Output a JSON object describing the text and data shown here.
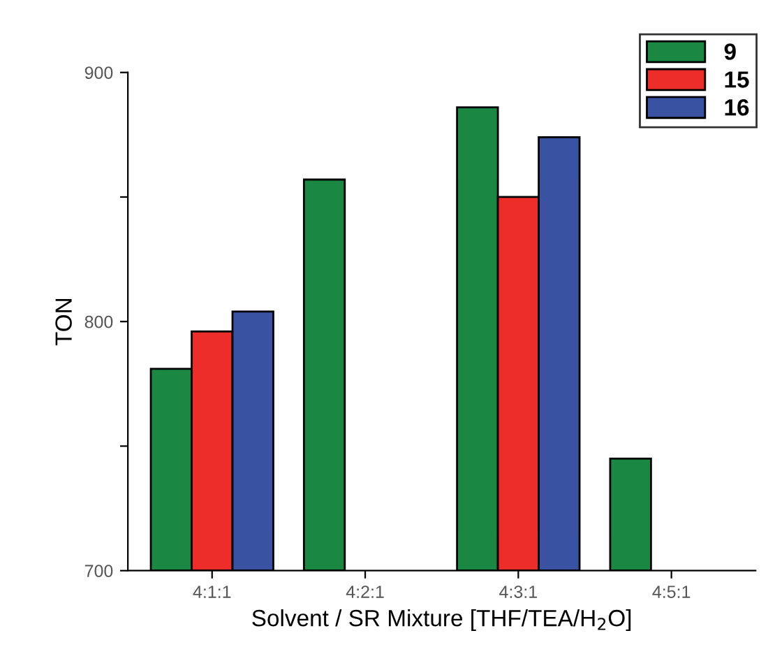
{
  "chart_data": {
    "type": "bar",
    "xlabel": "Solvent / SR Mixture [THF/TEA/H$_{2}$O]",
    "ylabel": "TON",
    "categories": [
      "4:1:1",
      "4:2:1",
      "4:3:1",
      "4:5:1"
    ],
    "series": [
      {
        "name": "9",
        "color": "#1a8743",
        "values": [
          781,
          857,
          886,
          745
        ]
      },
      {
        "name": "15",
        "color": "#ec2d2a",
        "values": [
          796,
          null,
          850,
          null
        ]
      },
      {
        "name": "16",
        "color": "#3a52a2",
        "values": [
          804,
          null,
          874,
          null
        ]
      }
    ],
    "ylim": [
      700,
      900
    ],
    "yticks": [
      700,
      {
        "value": 750,
        "label": null
      },
      800,
      {
        "value": 850,
        "label": null
      },
      900
    ],
    "grid": false,
    "legend": "top right"
  }
}
